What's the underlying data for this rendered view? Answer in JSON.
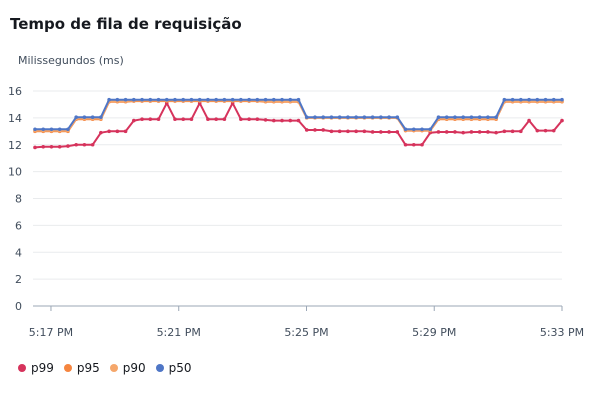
{
  "title": "Tempo de fila de requisição",
  "chart_data": {
    "type": "line",
    "title": "Tempo de fila de requisição",
    "ylabel": "Milissegundos (ms)",
    "xlabel": "",
    "ylim": [
      0,
      16
    ],
    "yticks": [
      "0",
      "2",
      "4",
      "6",
      "8",
      "10",
      "12",
      "14",
      "16"
    ],
    "xticks": [
      "5:17 PM",
      "5:21 PM",
      "5:25 PM",
      "5:29 PM",
      "5:33 PM"
    ],
    "x_range_minutes": [
      "5:16:30 PM",
      "5:33:00 PM"
    ],
    "grid": true,
    "legend_position": "bottom-left",
    "series": [
      {
        "name": "p99",
        "color": "#d6335c",
        "values": [
          11.8,
          11.85,
          11.85,
          11.85,
          11.9,
          12.0,
          12.0,
          12.0,
          12.9,
          13.0,
          13.0,
          13.0,
          13.8,
          13.9,
          13.9,
          13.9,
          15.1,
          13.9,
          13.9,
          13.9,
          15.1,
          13.9,
          13.9,
          13.9,
          15.1,
          13.9,
          13.9,
          13.9,
          13.85,
          13.8,
          13.8,
          13.8,
          13.8,
          13.1,
          13.1,
          13.1,
          13.0,
          13.0,
          13.0,
          13.0,
          13.0,
          12.95,
          12.95,
          12.95,
          12.95,
          12.0,
          12.0,
          12.0,
          12.9,
          12.95,
          12.95,
          12.95,
          12.9,
          12.95,
          12.95,
          12.95,
          12.9,
          13.0,
          13.0,
          13.0,
          13.8,
          13.05,
          13.05,
          13.05,
          13.8
        ]
      },
      {
        "name": "p95",
        "color": "#f5853f",
        "values": [
          13.0,
          13.0,
          13.0,
          13.0,
          13.0,
          13.9,
          13.9,
          13.9,
          13.9,
          15.2,
          15.2,
          15.2,
          15.25,
          15.25,
          15.25,
          15.25,
          15.25,
          15.25,
          15.25,
          15.25,
          15.25,
          15.25,
          15.25,
          15.25,
          15.25,
          15.25,
          15.25,
          15.25,
          15.2,
          15.2,
          15.2,
          15.2,
          15.2,
          14.0,
          14.0,
          14.0,
          14.0,
          14.0,
          14.0,
          14.0,
          14.0,
          14.0,
          14.0,
          14.0,
          14.0,
          13.05,
          13.05,
          13.05,
          13.05,
          13.9,
          13.9,
          13.9,
          13.9,
          13.9,
          13.9,
          13.9,
          13.9,
          15.2,
          15.2,
          15.2,
          15.2,
          15.2,
          15.2,
          15.2,
          15.2
        ]
      },
      {
        "name": "p90",
        "color": "#f5a76b",
        "values": [
          13.05,
          13.05,
          13.05,
          13.05,
          13.05,
          13.95,
          13.95,
          13.95,
          13.95,
          15.25,
          15.25,
          15.25,
          15.3,
          15.3,
          15.3,
          15.3,
          15.3,
          15.3,
          15.3,
          15.3,
          15.3,
          15.3,
          15.3,
          15.3,
          15.3,
          15.3,
          15.3,
          15.3,
          15.25,
          15.25,
          15.25,
          15.25,
          15.25,
          14.0,
          14.0,
          14.0,
          14.0,
          14.0,
          14.0,
          14.0,
          14.0,
          14.0,
          14.0,
          14.0,
          14.0,
          13.1,
          13.1,
          13.1,
          13.1,
          13.95,
          13.95,
          13.95,
          13.95,
          13.95,
          13.95,
          13.95,
          13.95,
          15.25,
          15.25,
          15.25,
          15.25,
          15.25,
          15.25,
          15.25,
          15.25
        ]
      },
      {
        "name": "p50",
        "color": "#4f76c6",
        "values": [
          13.15,
          13.15,
          13.15,
          13.15,
          13.15,
          14.05,
          14.05,
          14.05,
          14.05,
          15.35,
          15.35,
          15.35,
          15.35,
          15.35,
          15.35,
          15.35,
          15.35,
          15.35,
          15.35,
          15.35,
          15.35,
          15.35,
          15.35,
          15.35,
          15.35,
          15.35,
          15.35,
          15.35,
          15.35,
          15.35,
          15.35,
          15.35,
          15.35,
          14.05,
          14.05,
          14.05,
          14.05,
          14.05,
          14.05,
          14.05,
          14.05,
          14.05,
          14.05,
          14.05,
          14.05,
          13.15,
          13.15,
          13.15,
          13.15,
          14.05,
          14.05,
          14.05,
          14.05,
          14.05,
          14.05,
          14.05,
          14.05,
          15.35,
          15.35,
          15.35,
          15.35,
          15.35,
          15.35,
          15.35,
          15.35
        ]
      }
    ]
  }
}
